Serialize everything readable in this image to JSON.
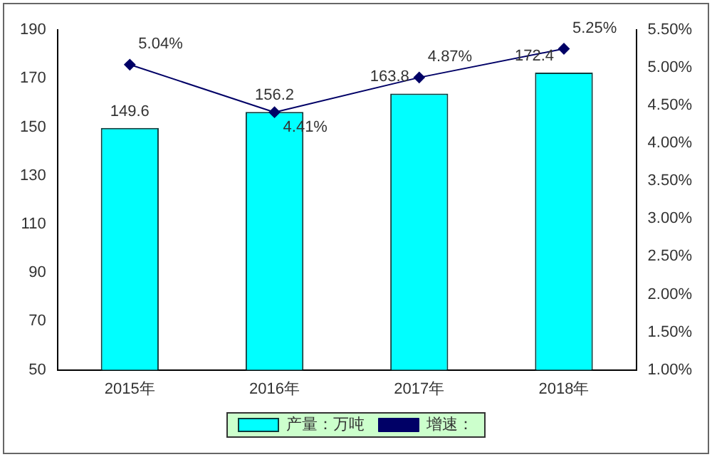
{
  "chart_data": {
    "type": "bar",
    "categories": [
      "2015年",
      "2016年",
      "2017年",
      "2018年"
    ],
    "series": [
      {
        "name": "产量：万吨",
        "color": "#00ffff",
        "values": [
          149.6,
          156.2,
          163.8,
          172.4
        ],
        "value_labels": [
          "149.6",
          "156.2",
          "163.8",
          "172.4"
        ]
      },
      {
        "name": "增速：",
        "type": "line",
        "axis": "y2",
        "color": "#000066",
        "marker": "diamond",
        "values": [
          5.04,
          4.41,
          4.87,
          5.25
        ],
        "value_labels": [
          "5.04%",
          "4.41%",
          "4.87%",
          "5.25%"
        ]
      }
    ],
    "ylim": [
      50,
      190
    ],
    "yticks": [
      50,
      70,
      90,
      110,
      130,
      150,
      170,
      190
    ],
    "y2lim": [
      1,
      5.5
    ],
    "y2ticks": [
      {
        "value": 1,
        "label": "1.00%"
      },
      {
        "value": 1.5,
        "label": "1.50%"
      },
      {
        "value": 2,
        "label": "2.00%"
      },
      {
        "value": 2.5,
        "label": "2.50%"
      },
      {
        "value": 3,
        "label": "3.00%"
      },
      {
        "value": 3.5,
        "label": "3.50%"
      },
      {
        "value": 4,
        "label": "4.00%"
      },
      {
        "value": 4.5,
        "label": "4.50%"
      },
      {
        "value": 5,
        "label": "5.00%"
      },
      {
        "value": 5.5,
        "label": "5.50%"
      }
    ],
    "grid": false,
    "legend": "bottom"
  }
}
